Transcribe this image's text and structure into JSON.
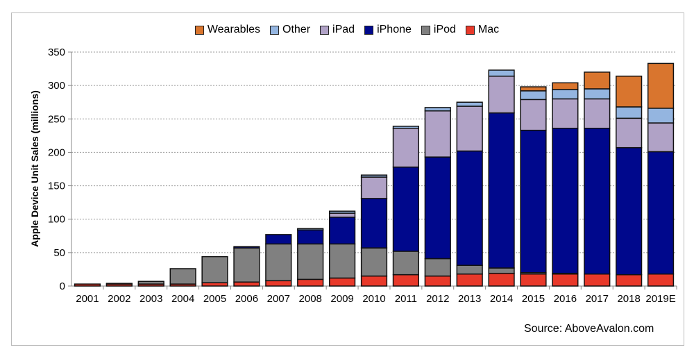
{
  "chart_data": {
    "type": "bar",
    "stacked": true,
    "title": "",
    "xlabel": "",
    "ylabel": "Apple Device Unit Sales (millions)",
    "ylim": [
      0,
      350
    ],
    "yticks": [
      0,
      50,
      100,
      150,
      200,
      250,
      300,
      350
    ],
    "grid": "horizontal dotted",
    "legend_position": "top",
    "categories": [
      "2001",
      "2002",
      "2003",
      "2004",
      "2005",
      "2006",
      "2007",
      "2008",
      "2009",
      "2010",
      "2011",
      "2012",
      "2013",
      "2014",
      "2015",
      "2016",
      "2017",
      "2018",
      "2019E"
    ],
    "series": [
      {
        "name": "Mac",
        "color": "#e8392a",
        "values": [
          3,
          3,
          3,
          3,
          5,
          6,
          8,
          10,
          12,
          15,
          17,
          15,
          18,
          19,
          18,
          18,
          18,
          17,
          18
        ]
      },
      {
        "name": "iPod",
        "color": "#808080",
        "values": [
          0,
          1,
          4,
          23,
          39,
          51,
          55,
          53,
          51,
          42,
          35,
          26,
          13,
          8,
          2,
          1,
          0,
          0,
          0
        ]
      },
      {
        "name": "iPhone",
        "color": "#00088c",
        "values": [
          0,
          0,
          0,
          0,
          0,
          2,
          14,
          21,
          40,
          74,
          126,
          152,
          171,
          232,
          213,
          217,
          218,
          190,
          183
        ]
      },
      {
        "name": "iPad",
        "color": "#b0a2c6",
        "values": [
          0,
          0,
          0,
          0,
          0,
          0,
          0,
          0,
          6,
          32,
          58,
          69,
          67,
          55,
          46,
          44,
          44,
          44,
          43
        ]
      },
      {
        "name": "Other",
        "color": "#94b5e0",
        "values": [
          0,
          0,
          0,
          0,
          0,
          0,
          0,
          2,
          3,
          3,
          3,
          5,
          6,
          9,
          13,
          14,
          15,
          17,
          22
        ]
      },
      {
        "name": "Wearables",
        "color": "#d9752e",
        "values": [
          0,
          0,
          0,
          0,
          0,
          0,
          0,
          0,
          0,
          0,
          0,
          0,
          0,
          0,
          6,
          10,
          25,
          46,
          67
        ]
      }
    ],
    "legend_order": [
      "Wearables",
      "Other",
      "iPad",
      "iPhone",
      "iPod",
      "Mac"
    ],
    "source": "Source: AboveAvalon.com"
  }
}
